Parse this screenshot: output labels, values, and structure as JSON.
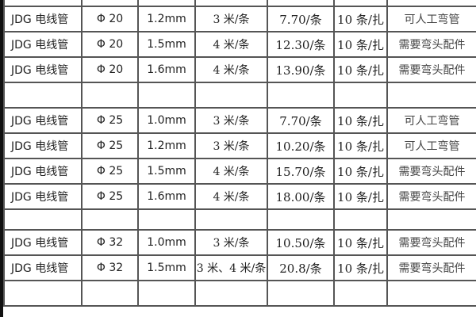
{
  "rows": [
    [
      "",
      "",
      "",
      "",
      "",
      "",
      ""
    ],
    [
      "JDG 电线管",
      "Φ 20",
      "1.2mm",
      "3 米/条",
      "7.70/条",
      "10 条/扎",
      "可人工弯管"
    ],
    [
      "JDG 电线管",
      "Φ 20",
      "1.5mm",
      "4 米/条",
      "12.30/条",
      "10 条/扎",
      "需要弯头配件"
    ],
    [
      "JDG 电线管",
      "Φ 20",
      "1.6mm",
      "4 米/条",
      "13.90/条",
      "10 条/扎",
      "需要弯头配件"
    ],
    [
      "",
      "",
      "",
      "",
      "",
      "",
      ""
    ],
    [
      "JDG 电线管",
      "Φ 25",
      "1.0mm",
      "3 米/条",
      "7.70/条",
      "10 条/扎",
      "可人工弯管"
    ],
    [
      "JDG 电线管",
      "Φ 25",
      "1.2mm",
      "3 米/条",
      "10.20/条",
      "10 条/扎",
      "可人工弯管"
    ],
    [
      "JDG 电线管",
      "Φ 25",
      "1.5mm",
      "4 米/条",
      "15.70/条",
      "10 条/扎",
      "需要弯头配件"
    ],
    [
      "JDG 电线管",
      "Φ 25",
      "1.6mm",
      "4 米/条",
      "18.00/条",
      "10 条/扎",
      "需要弯头配件"
    ],
    [
      "",
      "",
      "",
      "",
      "",
      "",
      ""
    ],
    [
      "JDG 电线管",
      "Φ 32",
      "1.0mm",
      "3 米/条",
      "10.50/条",
      "10 条/扎",
      "需要弯头配件"
    ],
    [
      "JDG 电线管",
      "Φ 32",
      "1.5mm",
      "3 米、4 米/条",
      "20.8/条",
      "10 条/扎",
      "需要弯头配件"
    ],
    [
      "",
      "",
      "",
      "",
      "",
      "",
      ""
    ]
  ]
}
